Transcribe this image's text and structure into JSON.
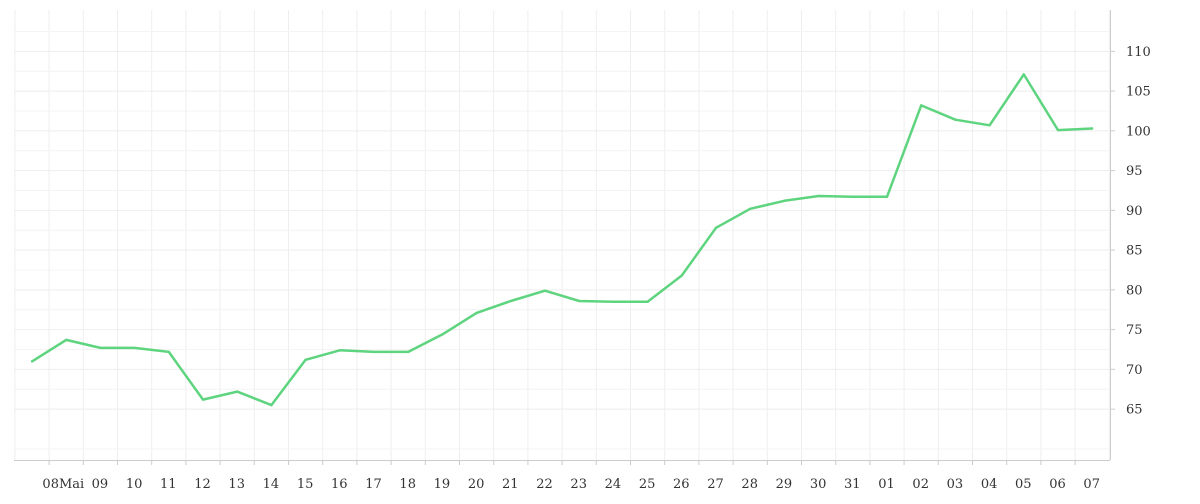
{
  "chart_data": {
    "type": "line",
    "x_tick_labels": [
      "08Mai",
      "09",
      "10",
      "11",
      "12",
      "13",
      "14",
      "15",
      "16",
      "17",
      "18",
      "19",
      "20",
      "21",
      "22",
      "23",
      "24",
      "25",
      "26",
      "27",
      "28",
      "29",
      "30",
      "31",
      "01",
      "02",
      "03",
      "04",
      "05",
      "06",
      "07"
    ],
    "series": [
      {
        "color": "#5ed47f",
        "points": [
          {
            "x": "2024-05-07",
            "y": 71.0
          },
          {
            "x": "2024-05-08",
            "y": 73.7
          },
          {
            "x": "2024-05-09",
            "y": 72.7
          },
          {
            "x": "2024-05-10",
            "y": 72.7
          },
          {
            "x": "2024-05-11",
            "y": 72.2
          },
          {
            "x": "2024-05-12",
            "y": 66.2
          },
          {
            "x": "2024-05-13",
            "y": 67.2
          },
          {
            "x": "2024-05-14",
            "y": 65.5
          },
          {
            "x": "2024-05-15",
            "y": 71.2
          },
          {
            "x": "2024-05-16",
            "y": 72.4
          },
          {
            "x": "2024-05-17",
            "y": 72.2
          },
          {
            "x": "2024-05-18",
            "y": 72.2
          },
          {
            "x": "2024-05-19",
            "y": 74.4
          },
          {
            "x": "2024-05-20",
            "y": 77.1
          },
          {
            "x": "2024-05-21",
            "y": 78.6
          },
          {
            "x": "2024-05-22",
            "y": 79.9
          },
          {
            "x": "2024-05-23",
            "y": 78.6
          },
          {
            "x": "2024-05-24",
            "y": 78.5
          },
          {
            "x": "2024-05-25",
            "y": 78.5
          },
          {
            "x": "2024-05-26",
            "y": 81.8
          },
          {
            "x": "2024-05-27",
            "y": 87.8
          },
          {
            "x": "2024-05-28",
            "y": 90.2
          },
          {
            "x": "2024-05-29",
            "y": 91.2
          },
          {
            "x": "2024-05-30",
            "y": 91.8
          },
          {
            "x": "2024-05-31",
            "y": 91.7
          },
          {
            "x": "2024-06-01",
            "y": 91.7
          },
          {
            "x": "2024-06-02",
            "y": 103.2
          },
          {
            "x": "2024-06-03",
            "y": 101.4
          },
          {
            "x": "2024-06-04",
            "y": 100.7
          },
          {
            "x": "2024-06-05",
            "y": 107.1
          },
          {
            "x": "2024-06-06",
            "y": 100.1
          },
          {
            "x": "2024-06-07",
            "y": 100.3
          }
        ]
      }
    ],
    "y_ticks": [
      65,
      70,
      75,
      80,
      85,
      90,
      95,
      100,
      105,
      110
    ],
    "ylim": [
      58.6,
      115.2
    ],
    "y_axis_side": "right",
    "grid": true,
    "grid_color": "#eeeeee",
    "tick_color": "#333333"
  }
}
